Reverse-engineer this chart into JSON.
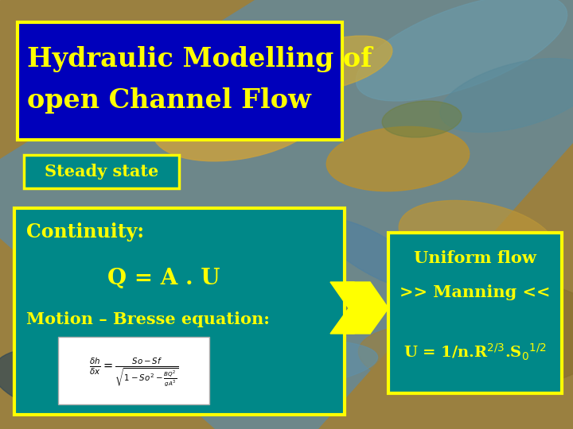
{
  "title_line1": "Hydraulic Modelling of",
  "title_line2": "open Channel Flow",
  "title_bg": "#0000bb",
  "title_border": "#ffff00",
  "title_color": "#ffff00",
  "steady_state_text": "Steady state",
  "steady_state_bg": "#008888",
  "steady_state_border": "#ffff00",
  "steady_state_color": "#ffff00",
  "main_box_bg": "#008888",
  "main_box_border": "#ffff00",
  "continuity_text": "Continuity:",
  "qau_text": "Q = A . U",
  "motion_text": "Motion – Bresse equation:",
  "text_color": "#ffff00",
  "formula_box_bg": "#ffffff",
  "arrow_color": "#ffff00",
  "arrow_outline": "#ffff00",
  "right_box_bg": "#008888",
  "right_box_border": "#ffff00",
  "uniform_flow_line1": "Uniform flow",
  "uniform_flow_line2": ">> Manning <<",
  "right_text_color": "#ffff00",
  "manning_text": "U = 1/n.R",
  "bg_sand": "#b8962e",
  "bg_water": "#4a7a9b",
  "bg_green": "#6a8c3a"
}
